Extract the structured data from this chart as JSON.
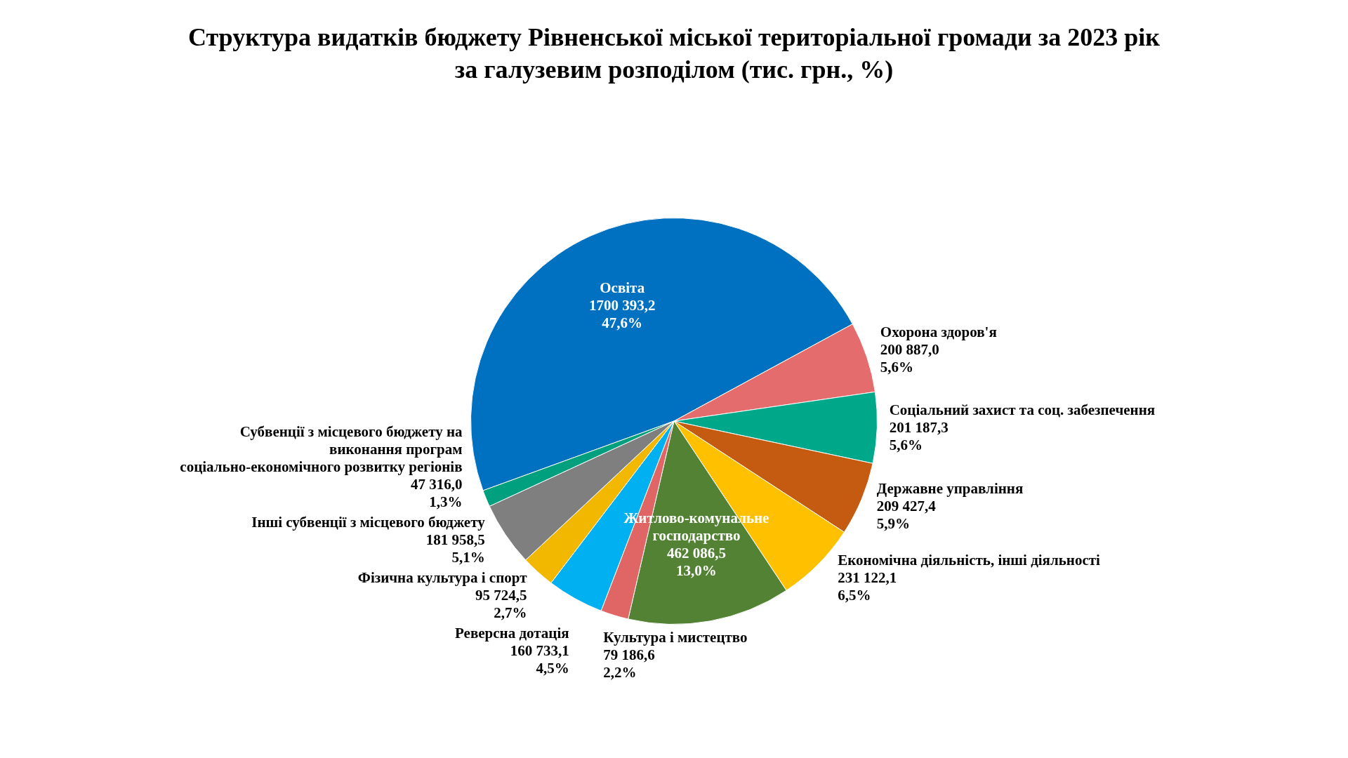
{
  "chart_data": {
    "type": "pie",
    "title": "Структура видатків бюджету Рівненської міської територіальної громади за 2023 рік за галузевим розподілом (тис. грн., %)",
    "categories": [
      "Освіта",
      "Охорона здоров'я",
      "Соціальний захист та соц. забезпечення",
      "Державне управління",
      "Економічна діяльність, інші діяльності",
      "Житлово-комунальне господарство",
      "Культура і мистецтво",
      "Реверсна дотація",
      "Фізична культура і спорт",
      "Інші субвенції з місцевого бюджету",
      "Субвенції з місцевого бюджету на виконання програм соціально-економічного розвитку регіонів"
    ],
    "values": [
      1700393.2,
      200887.0,
      201187.3,
      209427.4,
      231122.1,
      462086.5,
      79186.6,
      160733.1,
      95724.5,
      181958.5,
      47316.0
    ],
    "value_labels": [
      "1700 393,2\n47,6%",
      "200 887,0\n5,6%",
      "201 187,3\n5,6%",
      "209 427,4\n5,9%",
      "231 122,1\n6,5%",
      "462 086,5\n13,0%",
      "79 186,6\n2,2%",
      "160 733,1\n4,5%",
      "95 724,5\n2,7%",
      "181 958,5\n5,1%",
      "47 316,0\n1,3%"
    ],
    "colors": [
      "#0070c0",
      "#e46c6c",
      "#00a88a",
      "#c55a11",
      "#ffc000",
      "#548235",
      "#e06666",
      "#00b0f0",
      "#f2b800",
      "#7f7f7f",
      "#00a07f"
    ]
  }
}
